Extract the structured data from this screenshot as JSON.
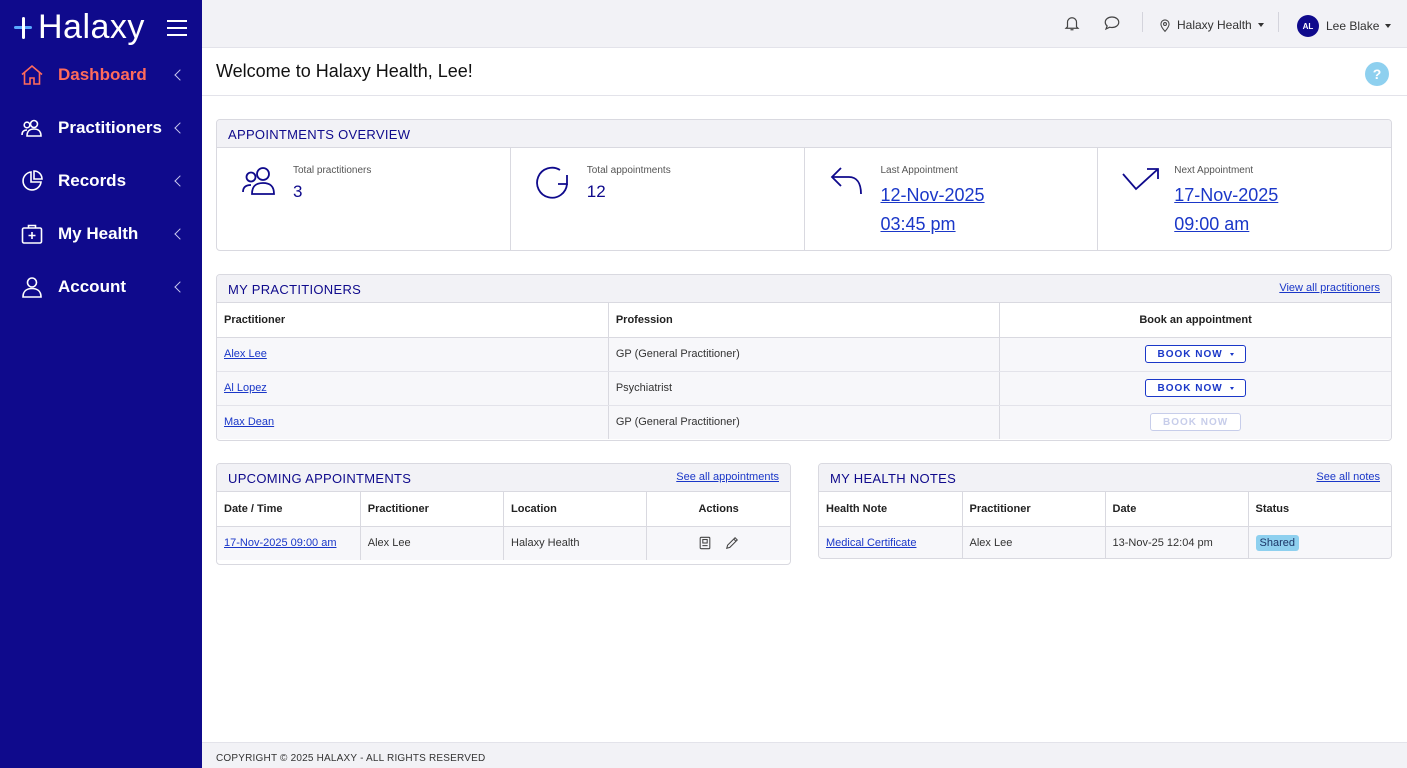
{
  "brand": {
    "name": "Halaxy",
    "primary_color": "#0f0a8c",
    "accent_color": "#ff6b5b",
    "link_color": "#1a37c8"
  },
  "sidebar": {
    "items": [
      {
        "label": "Dashboard",
        "icon": "home-icon",
        "active": true
      },
      {
        "label": "Practitioners",
        "icon": "people-icon",
        "active": false
      },
      {
        "label": "Records",
        "icon": "pie-chart-icon",
        "active": false
      },
      {
        "label": "My Health",
        "icon": "medical-kit-icon",
        "active": false
      },
      {
        "label": "Account",
        "icon": "user-icon",
        "active": false
      }
    ]
  },
  "topbar": {
    "location": "Halaxy Health",
    "user": {
      "initials": "AL",
      "name": "Lee Blake"
    }
  },
  "welcome": {
    "title": "Welcome to Halaxy Health, Lee!",
    "help": "?"
  },
  "overview": {
    "title": "APPOINTMENTS OVERVIEW",
    "total_practitioners": {
      "label": "Total practitioners",
      "value": "3"
    },
    "total_appointments": {
      "label": "Total appointments",
      "value": "12"
    },
    "last_appointment": {
      "label": "Last Appointment",
      "date": "12-Nov-2025",
      "time": "03:45 pm"
    },
    "next_appointment": {
      "label": "Next Appointment",
      "date": "17-Nov-2025",
      "time": "09:00 am"
    }
  },
  "practitioners": {
    "title": "MY PRACTITIONERS",
    "link": "View all practitioners",
    "columns": [
      "Practitioner",
      "Profession",
      "Book an appointment"
    ],
    "rows": [
      {
        "name": "Alex Lee",
        "profession": "GP (General Practitioner)",
        "button": "BOOK NOW",
        "enabled": true
      },
      {
        "name": "Al Lopez",
        "profession": "Psychiatrist",
        "button": "BOOK NOW",
        "enabled": true
      },
      {
        "name": "Max Dean",
        "profession": "GP (General Practitioner)",
        "button": "BOOK NOW",
        "enabled": false
      }
    ]
  },
  "upcoming": {
    "title": "UPCOMING APPOINTMENTS",
    "link": "See all appointments",
    "columns": [
      "Date / Time",
      "Practitioner",
      "Location",
      "Actions"
    ],
    "rows": [
      {
        "datetime": "17-Nov-2025 09:00 am",
        "practitioner": "Alex Lee",
        "location": "Halaxy Health"
      }
    ]
  },
  "health_notes": {
    "title": "MY HEALTH NOTES",
    "link": "See all notes",
    "columns": [
      "Health Note",
      "Practitioner",
      "Date",
      "Status"
    ],
    "rows": [
      {
        "note": "Medical Certificate",
        "practitioner": "Alex Lee",
        "date": "13-Nov-25 12:04 pm",
        "status": "Shared"
      }
    ]
  },
  "footer": {
    "text": "COPYRIGHT © 2025 HALAXY - ALL RIGHTS RESERVED"
  }
}
